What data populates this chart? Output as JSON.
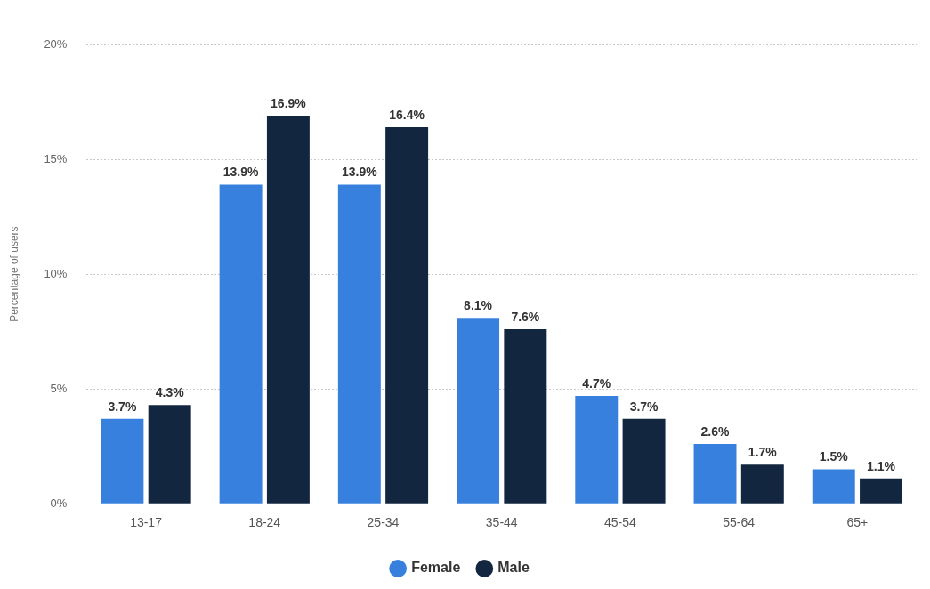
{
  "chart_data": {
    "type": "bar",
    "ylabel": "Percentage of users",
    "categories": [
      "13-17",
      "18-24",
      "25-34",
      "35-44",
      "45-54",
      "55-64",
      "65+"
    ],
    "series": [
      {
        "name": "Female",
        "color": "#3880de",
        "values": [
          3.7,
          13.9,
          13.9,
          8.1,
          4.7,
          2.6,
          1.5
        ],
        "value_labels": [
          "3.7%",
          "13.9%",
          "13.9%",
          "8.1%",
          "4.7%",
          "2.6%",
          "1.5%"
        ]
      },
      {
        "name": "Male",
        "color": "#13263f",
        "values": [
          4.3,
          16.9,
          16.4,
          7.6,
          3.7,
          1.7,
          1.1
        ],
        "value_labels": [
          "4.3%",
          "16.9%",
          "16.4%",
          "7.6%",
          "3.7%",
          "1.7%",
          "1.1%"
        ]
      }
    ],
    "ylim": [
      0,
      20
    ],
    "yticks": [
      {
        "value": 0,
        "label": "0%"
      },
      {
        "value": 5,
        "label": "5%"
      },
      {
        "value": 10,
        "label": "10%"
      },
      {
        "value": 15,
        "label": "15%"
      },
      {
        "value": 20,
        "label": "20%"
      }
    ],
    "grid": "y",
    "legend": "bottom"
  }
}
